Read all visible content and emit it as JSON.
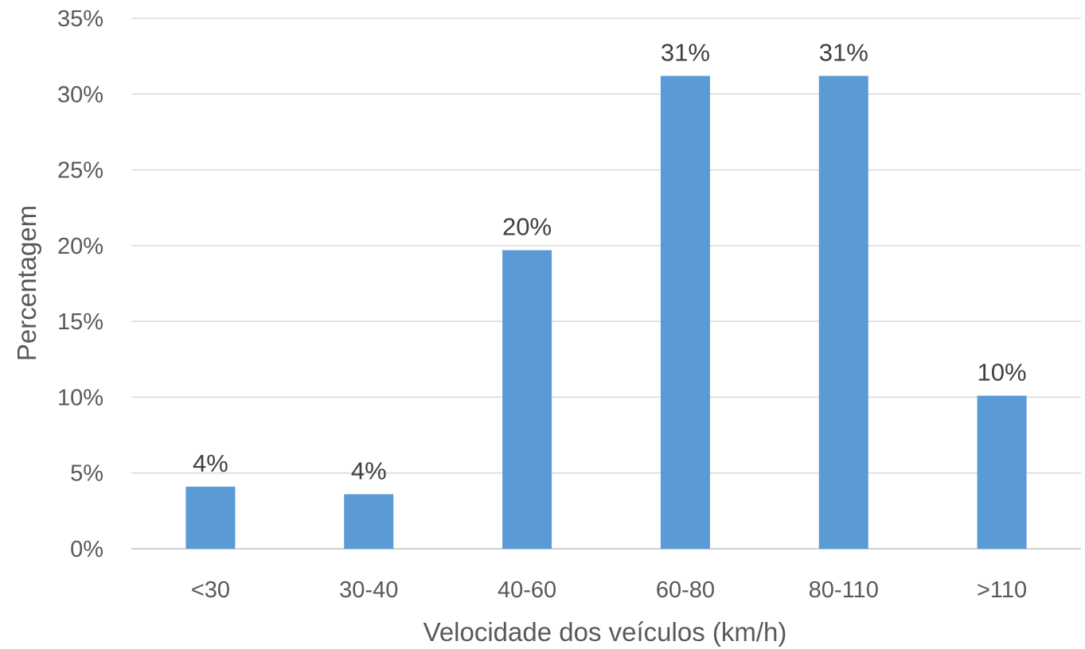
{
  "chart_data": {
    "type": "bar",
    "categories": [
      "<30",
      "30-40",
      "40-60",
      "60-80",
      "80-110",
      ">110"
    ],
    "values": [
      4.1,
      3.6,
      19.7,
      31.2,
      31.2,
      10.1
    ],
    "data_labels": [
      "4%",
      "4%",
      "20%",
      "31%",
      "31%",
      "10%"
    ],
    "title": "",
    "xlabel": "Velocidade dos veículos (km/h)",
    "ylabel": "Percentagem",
    "ylim": [
      0,
      35
    ],
    "y_ticks": [
      0,
      5,
      10,
      15,
      20,
      25,
      30,
      35
    ],
    "y_tick_labels": [
      "0%",
      "5%",
      "10%",
      "15%",
      "20%",
      "25%",
      "30%",
      "35%"
    ],
    "grid": true,
    "legend": "none",
    "bar_color": "#5b9bd5"
  }
}
